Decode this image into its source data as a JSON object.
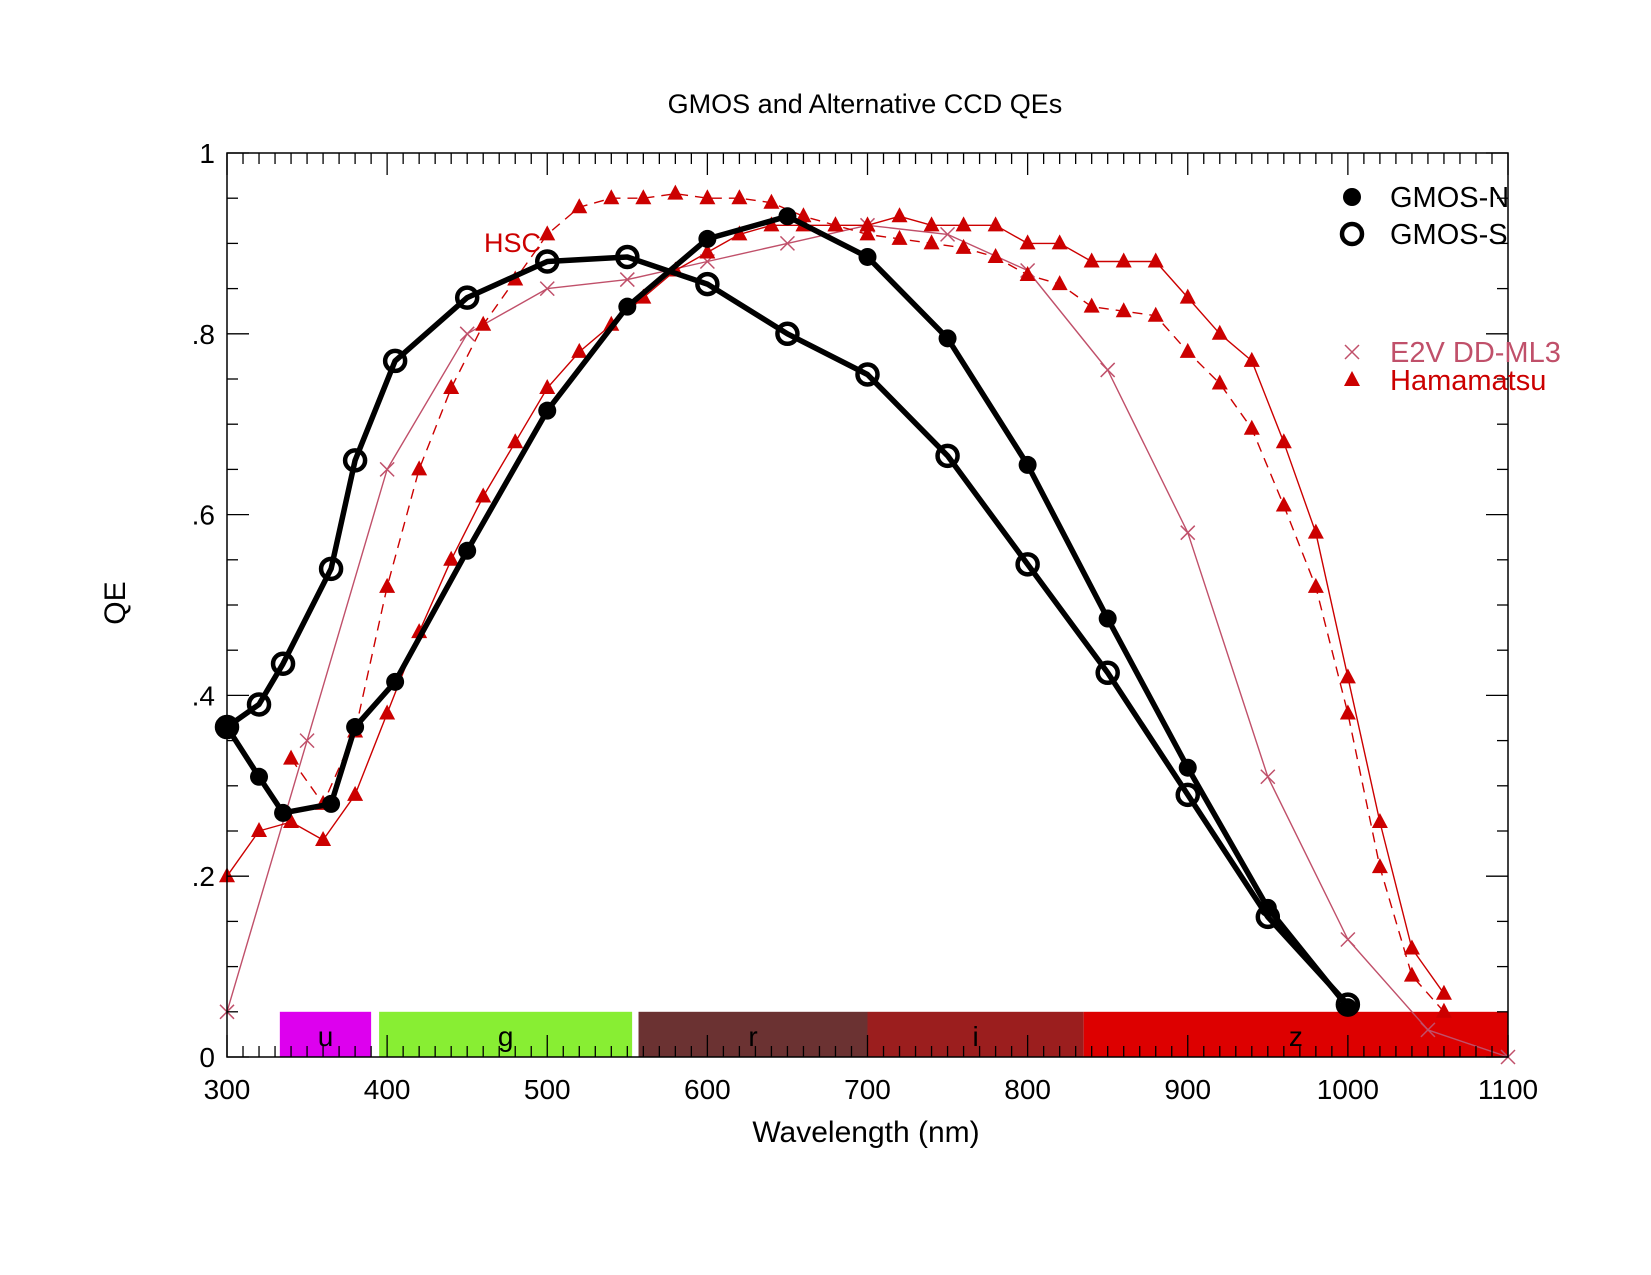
{
  "chart_data": {
    "type": "line",
    "title": "GMOS and Alternative CCD QEs",
    "xlabel": "Wavelength (nm)",
    "ylabel": "QE",
    "xlim": [
      300,
      1100
    ],
    "ylim": [
      0,
      1
    ],
    "x_ticks": [
      300,
      400,
      500,
      600,
      700,
      800,
      900,
      1000,
      1100
    ],
    "x_tick_labels": [
      "300",
      "400",
      "500",
      "600",
      "700",
      "800",
      "900",
      "1000",
      "1100"
    ],
    "y_ticks": [
      0,
      0.2,
      0.4,
      0.6,
      0.8,
      1
    ],
    "y_tick_labels": [
      "0",
      ".2",
      ".4",
      ".6",
      ".8",
      "1"
    ],
    "grid": false,
    "legend_position": "top-right",
    "annotation": {
      "text": "HSC",
      "x": 465,
      "y": 0.9,
      "color": "#cc0000"
    },
    "bands": [
      {
        "label": "u",
        "x0": 333,
        "x1": 390,
        "color": "#dd00ee"
      },
      {
        "label": "g",
        "x0": 395,
        "x1": 553,
        "color": "#88ee33"
      },
      {
        "label": "r",
        "x0": 557,
        "x1": 700,
        "color": "#6b3232"
      },
      {
        "label": "i",
        "x0": 700,
        "x1": 835,
        "color": "#9b1e1e"
      },
      {
        "label": "z",
        "x0": 835,
        "x1": 1100,
        "color": "#dd0000"
      }
    ],
    "band_height": 0.05,
    "series": [
      {
        "name": "GMOS-N",
        "color": "#000000",
        "marker": "filled-circle",
        "line": "solid-thick",
        "x": [
          300,
          320,
          335,
          365,
          380,
          405,
          450,
          500,
          550,
          600,
          650,
          700,
          750,
          800,
          850,
          900,
          950,
          1000
        ],
        "y": [
          0.365,
          0.31,
          0.27,
          0.28,
          0.365,
          0.415,
          0.56,
          0.715,
          0.83,
          0.905,
          0.93,
          0.885,
          0.795,
          0.655,
          0.485,
          0.32,
          0.165,
          0.055
        ]
      },
      {
        "name": "GMOS-S",
        "color": "#000000",
        "marker": "open-circle",
        "line": "solid-thick",
        "x": [
          300,
          320,
          335,
          365,
          380,
          405,
          450,
          500,
          550,
          600,
          650,
          700,
          750,
          800,
          850,
          900,
          950,
          1000
        ],
        "y": [
          0.365,
          0.39,
          0.435,
          0.54,
          0.66,
          0.77,
          0.84,
          0.88,
          0.885,
          0.855,
          0.8,
          0.755,
          0.665,
          0.545,
          0.425,
          0.29,
          0.155,
          0.058
        ]
      },
      {
        "name": "E2V DD-ML3",
        "color": "#c0506a",
        "marker": "x",
        "line": "solid-thin",
        "x": [
          300,
          350,
          400,
          450,
          500,
          550,
          600,
          650,
          700,
          750,
          800,
          850,
          900,
          950,
          1000,
          1050,
          1100
        ],
        "y": [
          0.05,
          0.35,
          0.65,
          0.8,
          0.85,
          0.86,
          0.88,
          0.9,
          0.92,
          0.91,
          0.87,
          0.76,
          0.58,
          0.31,
          0.13,
          0.03,
          0.0
        ]
      },
      {
        "name": "Hamamatsu",
        "color": "#cc0000",
        "marker": "triangle",
        "line": "solid-thin",
        "x": [
          300,
          320,
          340,
          360,
          380,
          400,
          420,
          440,
          460,
          480,
          500,
          520,
          540,
          560,
          580,
          600,
          620,
          640,
          660,
          680,
          700,
          720,
          740,
          760,
          780,
          800,
          820,
          840,
          860,
          880,
          900,
          920,
          940,
          960,
          980,
          1000,
          1020,
          1040,
          1060
        ],
        "y": [
          0.2,
          0.25,
          0.26,
          0.24,
          0.29,
          0.38,
          0.47,
          0.55,
          0.62,
          0.68,
          0.74,
          0.78,
          0.81,
          0.84,
          0.87,
          0.89,
          0.91,
          0.92,
          0.92,
          0.92,
          0.92,
          0.93,
          0.92,
          0.92,
          0.92,
          0.9,
          0.9,
          0.88,
          0.88,
          0.88,
          0.84,
          0.8,
          0.77,
          0.68,
          0.58,
          0.42,
          0.26,
          0.12,
          0.07
        ]
      },
      {
        "name": "",
        "color": "#cc0000",
        "marker": "triangle",
        "line": "dashed-thin",
        "x": [
          340,
          360,
          380,
          400,
          420,
          440,
          460,
          480,
          500,
          520,
          540,
          560,
          580,
          600,
          620,
          640,
          660,
          680,
          700,
          720,
          740,
          760,
          780,
          800,
          820,
          840,
          860,
          880,
          900,
          920,
          940,
          960,
          980,
          1000,
          1020,
          1040,
          1060
        ],
        "y": [
          0.33,
          0.28,
          0.36,
          0.52,
          0.65,
          0.74,
          0.81,
          0.86,
          0.91,
          0.94,
          0.95,
          0.95,
          0.955,
          0.95,
          0.95,
          0.945,
          0.93,
          0.92,
          0.91,
          0.905,
          0.9,
          0.895,
          0.885,
          0.865,
          0.855,
          0.83,
          0.825,
          0.82,
          0.78,
          0.745,
          0.695,
          0.61,
          0.52,
          0.38,
          0.21,
          0.09,
          0.05
        ]
      }
    ]
  }
}
